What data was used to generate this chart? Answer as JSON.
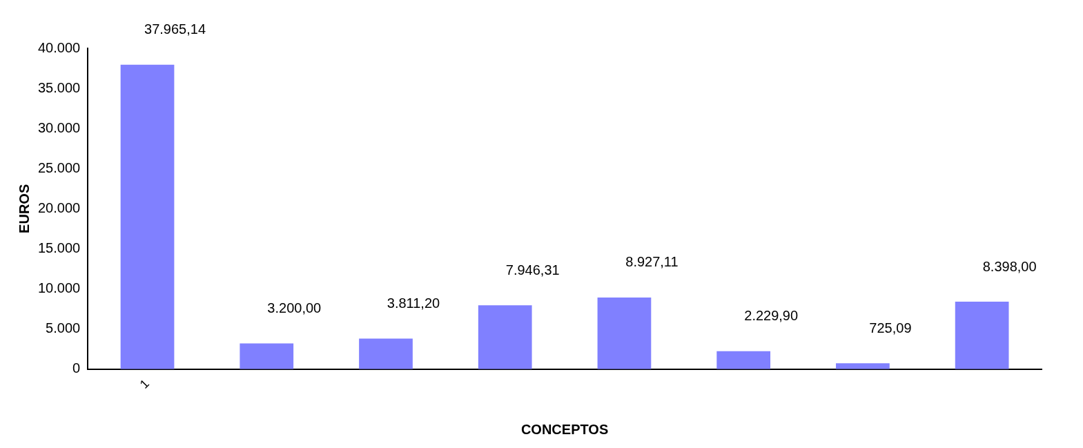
{
  "chart_data": {
    "type": "bar",
    "xlabel": "CONCEPTOS",
    "ylabel": "EUROS",
    "categories": [
      "1",
      null,
      null,
      null,
      null,
      null,
      null,
      null
    ],
    "values": [
      37965.14,
      3200.0,
      3811.2,
      7946.31,
      8927.11,
      2229.9,
      725.09,
      8398.0
    ],
    "value_labels": [
      "37.965,14",
      "3.200,00",
      "3.811,20",
      "7.946,31",
      "8.927,11",
      "2.229,90",
      "725,09",
      "8.398,00"
    ],
    "color": "#8080ff",
    "ylim": [
      0,
      40000
    ],
    "yticks": [
      {
        "value": 0,
        "label": "0"
      },
      {
        "value": 5000,
        "label": "5.000"
      },
      {
        "value": 10000,
        "label": "10.000"
      },
      {
        "value": 15000,
        "label": "15.000"
      },
      {
        "value": 20000,
        "label": "20.000"
      },
      {
        "value": 25000,
        "label": "25.000"
      },
      {
        "value": 30000,
        "label": "30.000"
      },
      {
        "value": 35000,
        "label": "35.000"
      },
      {
        "value": 40000,
        "label": "40.000"
      }
    ],
    "grid": false,
    "legend": false
  }
}
